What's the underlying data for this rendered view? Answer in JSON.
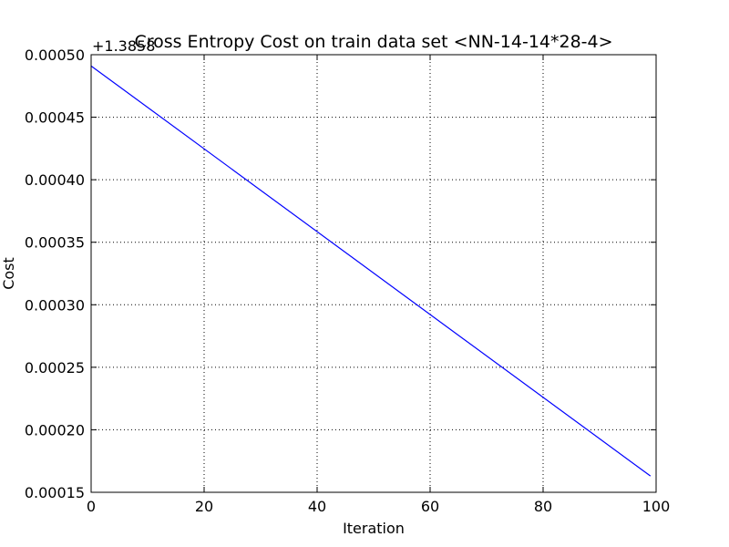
{
  "chart_data": {
    "type": "line",
    "title": "Cross Entropy Cost on train data set <NN-14-14*28-4>",
    "xlabel": "Iteration",
    "ylabel": "Cost",
    "y_offset_label": "+1.3858",
    "y_offset": 1.3858,
    "xlim": [
      0,
      100
    ],
    "ylim": [
      0.00015,
      0.0005
    ],
    "x_ticks": [
      0,
      20,
      40,
      60,
      80,
      100
    ],
    "x_tick_labels": [
      "0",
      "20",
      "40",
      "60",
      "80",
      "100"
    ],
    "y_ticks": [
      0.00015,
      0.0002,
      0.00025,
      0.0003,
      0.00035,
      0.0004,
      0.00045,
      0.0005
    ],
    "y_tick_labels": [
      "0.00015",
      "0.00020",
      "0.00025",
      "0.00030",
      "0.00035",
      "0.00040",
      "0.00045",
      "0.00050"
    ],
    "grid": true,
    "series": [
      {
        "color": "#0000ff",
        "x": [
          0,
          99
        ],
        "y": [
          0.000491,
          0.000163
        ]
      }
    ]
  }
}
